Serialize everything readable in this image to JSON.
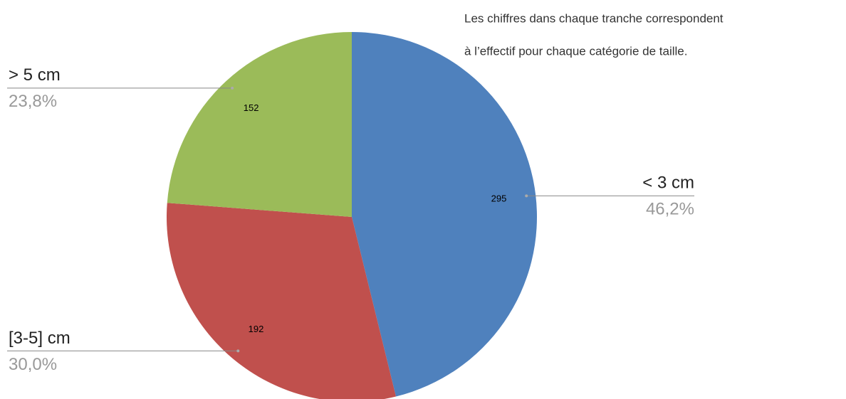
{
  "chart_data": {
    "type": "pie",
    "annotation": [
      "Les chiffres dans chaque tranche correspondent",
      "à l’effectif pour chaque catégorie de taille."
    ],
    "categories": [
      "< 3 cm",
      "[3-5]  cm",
      "> 5  cm"
    ],
    "values": [
      295,
      192,
      152
    ],
    "percent_labels": [
      "46,2%",
      "30,0%",
      "23,8%"
    ],
    "colors": [
      "#4f81bd",
      "#c0504d",
      "#9bbb59"
    ]
  }
}
